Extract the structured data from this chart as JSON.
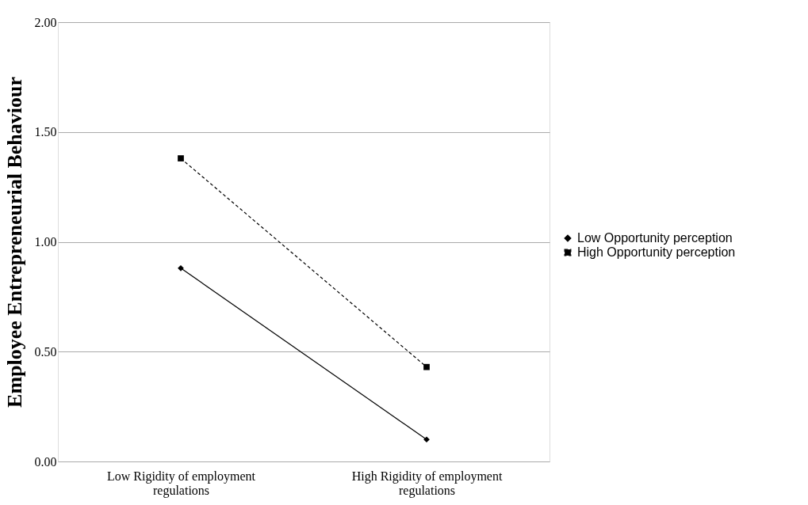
{
  "chart_data": {
    "type": "line",
    "ylabel": "Employee Entrepreneurial Behaviour",
    "categories": [
      "Low Rigidity of employment regulations",
      "High Rigidity of employment regulations"
    ],
    "series": [
      {
        "name": "Low Opportunity perception",
        "color": "#000000",
        "values": [
          0.88,
          0.1
        ],
        "marker": "diamond",
        "line_style": "solid"
      },
      {
        "name": "High Opportunity perception",
        "color": "#000000",
        "values": [
          1.38,
          0.43
        ],
        "marker": "square",
        "line_style": "dashed"
      }
    ],
    "ylim": [
      0,
      2
    ],
    "yticks": [
      {
        "value": 0,
        "label": "0.00"
      },
      {
        "value": 0.5,
        "label": "0.50"
      },
      {
        "value": 1,
        "label": "1.00"
      },
      {
        "value": 1.5,
        "label": "1.50"
      },
      {
        "value": 2,
        "label": "2.00"
      }
    ],
    "grid": "y",
    "legend": "right"
  }
}
